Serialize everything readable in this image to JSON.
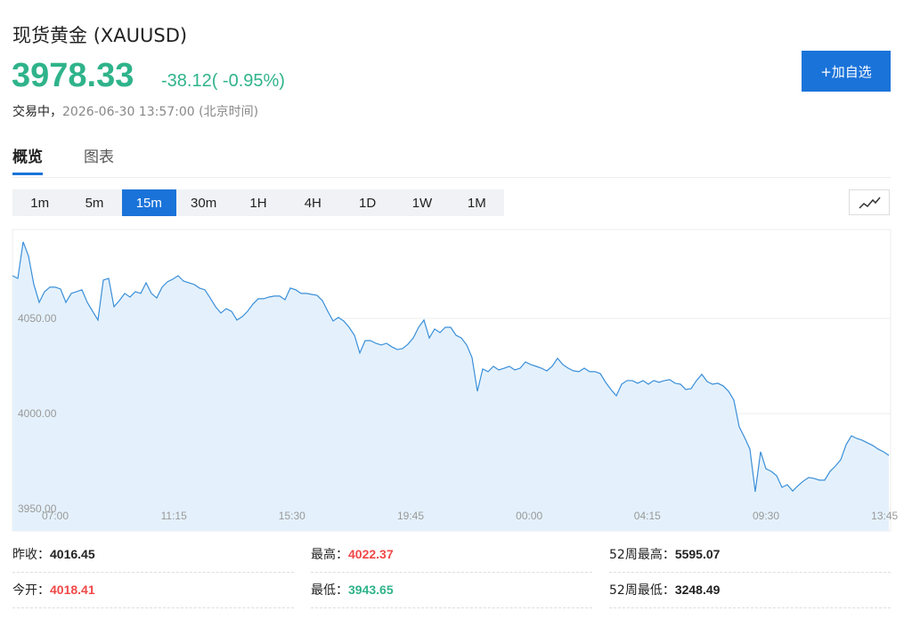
{
  "header": {
    "name": "现货黄金",
    "code": "(XAUUSD)",
    "price": "3978.33",
    "change": "-38.12",
    "change_pct": "( -0.95%)",
    "status": "交易中，",
    "time": "2026-06-30 13:57:00 (北京时间)",
    "button": "+加自选",
    "up_color": "#f04848",
    "down_color": "#2fb38a"
  },
  "tabs": {
    "items": [
      "概览",
      "图表"
    ],
    "active": 0
  },
  "intervals": {
    "items": [
      "1m",
      "5m",
      "15m",
      "30m",
      "1H",
      "4H",
      "1D",
      "1W",
      "1M"
    ],
    "active": 2
  },
  "chart_data": {
    "type": "area",
    "color": "#3a8fd9",
    "fill": "#e4f1fc",
    "grid": true,
    "values": [
      4072.4,
      4071.0,
      4090.2,
      4082.7,
      4067.8,
      4058.4,
      4064.0,
      4066.4,
      4066.4,
      4065.4,
      4058.4,
      4063.1,
      4064.0,
      4065.0,
      4058.4,
      4053.7,
      4049.1,
      4070.1,
      4071.0,
      4056.1,
      4059.3,
      4063.1,
      4061.2,
      4064.0,
      4063.1,
      4068.7,
      4063.1,
      4060.7,
      4066.4,
      4069.2,
      4070.6,
      4072.4,
      4069.6,
      4068.7,
      4067.8,
      4065.9,
      4065.0,
      4060.7,
      4056.1,
      4052.8,
      4055.1,
      4053.7,
      4049.1,
      4050.9,
      4053.7,
      4057.5,
      4060.3,
      4060.3,
      4061.2,
      4061.7,
      4061.7,
      4059.8,
      4065.9,
      4065.0,
      4063.1,
      4063.1,
      4062.6,
      4062.1,
      4059.3,
      4053.7,
      4048.6,
      4050.5,
      4048.6,
      4045.3,
      4041.1,
      4031.8,
      4038.3,
      4038.3,
      4036.9,
      4036.0,
      4036.9,
      4035.0,
      4033.6,
      4034.1,
      4036.4,
      4039.7,
      4045.3,
      4049.1,
      4039.7,
      4044.4,
      4042.5,
      4045.3,
      4045.3,
      4041.1,
      4039.7,
      4036.0,
      4029.4,
      4011.7,
      4023.4,
      4022.0,
      4024.8,
      4022.9,
      4023.8,
      4024.8,
      4022.9,
      4023.8,
      4027.1,
      4025.7,
      4024.8,
      4023.8,
      4022.4,
      4024.8,
      4029.0,
      4025.7,
      4023.8,
      4022.4,
      4022.0,
      4023.8,
      4022.0,
      4022.0,
      4021.0,
      4016.4,
      4012.6,
      4009.3,
      4015.4,
      4017.3,
      4017.3,
      4015.9,
      4017.3,
      4015.4,
      4017.3,
      4016.4,
      4017.3,
      4017.8,
      4015.9,
      4015.4,
      4012.6,
      4013.1,
      4017.3,
      4020.6,
      4016.8,
      4015.4,
      4015.9,
      4014.5,
      4011.7,
      4007.0,
      3993.0,
      3987.4,
      3981.3,
      3958.9,
      3979.9,
      3971.0,
      3969.6,
      3967.3,
      3961.2,
      3962.6,
      3959.3,
      3962.1,
      3964.5,
      3966.4,
      3965.9,
      3965.0,
      3965.0,
      3969.6,
      3972.4,
      3975.7,
      3983.6,
      3988.3,
      3986.9,
      3986.0,
      3984.6,
      3983.2,
      3981.3,
      3979.9,
      3978.0
    ],
    "xlim": [
      0,
      164
    ],
    "xticks": [
      {
        "value": 8,
        "label": "07:00"
      },
      {
        "value": 30.2,
        "label": "11:15"
      },
      {
        "value": 52.3,
        "label": "15:30"
      },
      {
        "value": 74.5,
        "label": "19:45"
      },
      {
        "value": 96.7,
        "label": "00:00"
      },
      {
        "value": 118.8,
        "label": "04:15"
      },
      {
        "value": 141,
        "label": "09:30"
      },
      {
        "value": 163.2,
        "label": "13:45"
      }
    ],
    "ylim": [
      3938.3,
      4096.7
    ],
    "yticks": [
      {
        "value": 3950,
        "label": "3950.00"
      },
      {
        "value": 4000,
        "label": "4000.00"
      },
      {
        "value": 4050,
        "label": "4050.00"
      }
    ]
  },
  "stats": [
    {
      "label": "昨收：",
      "value": "4016.45",
      "color": "#222222"
    },
    {
      "label": "最高：",
      "value": "4022.37",
      "color": "#f04848"
    },
    {
      "label": "52周最高：",
      "value": "5595.07",
      "color": "#222222"
    },
    {
      "label": "今开：",
      "value": "4018.41",
      "color": "#f04848"
    },
    {
      "label": "最低：",
      "value": "3943.65",
      "color": "#2fb38a"
    },
    {
      "label": "52周最低：",
      "value": "3248.49",
      "color": "#222222"
    }
  ]
}
